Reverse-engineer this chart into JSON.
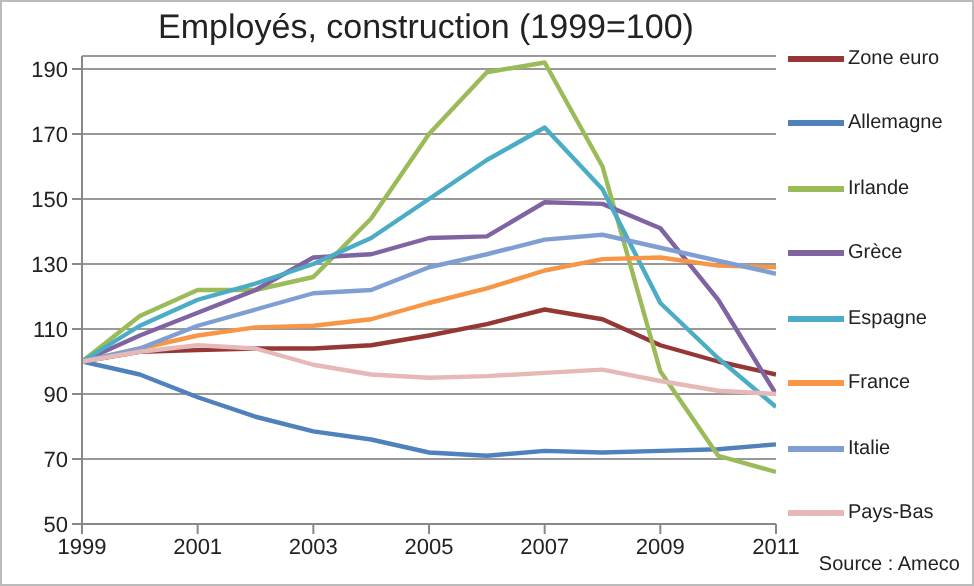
{
  "chart_data": {
    "type": "line",
    "title": "Employés, construction (1999=100)",
    "x": [
      1999,
      2000,
      2001,
      2002,
      2003,
      2004,
      2005,
      2006,
      2007,
      2008,
      2009,
      2010,
      2011
    ],
    "series": [
      {
        "name": "Zone euro",
        "color": "#953735",
        "values": [
          100,
          103,
          103.5,
          104,
          104,
          105,
          108,
          111.5,
          116,
          113,
          105,
          100,
          96
        ]
      },
      {
        "name": "Allemagne",
        "color": "#4f81bd",
        "values": [
          100,
          96,
          89,
          83,
          78.5,
          76,
          72,
          71,
          72.5,
          72,
          72.5,
          73,
          74.5
        ]
      },
      {
        "name": "Irlande",
        "color": "#9bbb59",
        "values": [
          100,
          114,
          122,
          122,
          126,
          144,
          170,
          189,
          192,
          160,
          97,
          71,
          66
        ]
      },
      {
        "name": "Grèce",
        "color": "#8064a2",
        "values": [
          100,
          108,
          115,
          122,
          132,
          133,
          138,
          138.5,
          149,
          148.5,
          141,
          119,
          90
        ]
      },
      {
        "name": "Espagne",
        "color": "#4bacc6",
        "values": [
          100,
          111,
          119,
          124,
          130,
          138,
          150,
          162,
          172,
          153,
          118,
          101,
          86
        ]
      },
      {
        "name": "France",
        "color": "#f79646",
        "values": [
          100,
          104,
          108,
          110.5,
          111,
          113,
          118,
          122.5,
          128,
          131.5,
          132,
          129.5,
          129
        ]
      },
      {
        "name": "Italie",
        "color": "#7f9fd3",
        "values": [
          100,
          104,
          111,
          116,
          121,
          122,
          129,
          133,
          137.5,
          139,
          135,
          131,
          127
        ]
      },
      {
        "name": "Pays-Bas",
        "color": "#e6b9b8",
        "values": [
          100,
          103,
          105,
          104,
          99,
          96,
          95,
          95.5,
          96.5,
          97.5,
          94,
          91,
          90
        ]
      }
    ],
    "xlim": [
      1999,
      2011
    ],
    "xticks": [
      1999,
      2001,
      2003,
      2005,
      2007,
      2009,
      2011
    ],
    "ylim": [
      50,
      194
    ],
    "yticks": [
      50,
      70,
      90,
      110,
      130,
      150,
      170,
      190
    ],
    "grid": "y",
    "legend": "right",
    "marker": "none",
    "line_style": "solid",
    "annotations": [
      "Source : Ameco"
    ]
  }
}
